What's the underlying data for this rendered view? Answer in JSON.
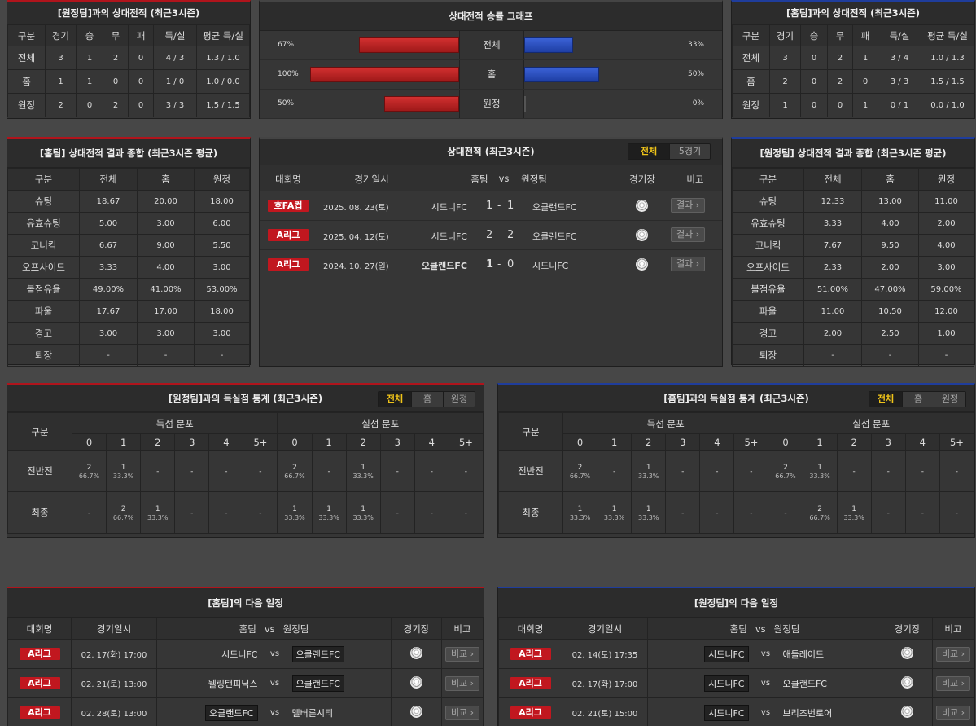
{
  "h2h_away_box": {
    "title": "[원정팀]과의 상대전적 (최근3시즌)",
    "headers": [
      "구분",
      "경기",
      "승",
      "무",
      "패",
      "득/실",
      "평균 득/실"
    ],
    "rows": [
      [
        "전체",
        "3",
        "1",
        "2",
        "0",
        "4 / 3",
        "1.3 / 1.0"
      ],
      [
        "홈",
        "1",
        "1",
        "0",
        "0",
        "1 / 0",
        "1.0 / 0.0"
      ],
      [
        "원정",
        "2",
        "0",
        "2",
        "0",
        "3 / 3",
        "1.5 / 1.5"
      ]
    ]
  },
  "win_graph": {
    "title": "상대전적 승률 그래프",
    "rows": [
      {
        "label": "전체",
        "left_pct": "67%",
        "right_pct": "33%",
        "left_value": 67,
        "right_value": 33
      },
      {
        "label": "홈",
        "left_pct": "100%",
        "right_pct": "50%",
        "left_value": 100,
        "right_value": 50
      },
      {
        "label": "원정",
        "left_pct": "50%",
        "right_pct": "0%",
        "left_value": 50,
        "right_value": 0
      }
    ],
    "colors": {
      "home": "#c1171f",
      "away": "#2a4fc2"
    }
  },
  "h2h_home_box": {
    "title": "[홈팀]과의 상대전적 (최근3시즌)",
    "headers": [
      "구분",
      "경기",
      "승",
      "무",
      "패",
      "득/실",
      "평균 득/실"
    ],
    "rows": [
      [
        "전체",
        "3",
        "0",
        "2",
        "1",
        "3 / 4",
        "1.0 / 1.3"
      ],
      [
        "홈",
        "2",
        "0",
        "2",
        "0",
        "3 / 3",
        "1.5 / 1.5"
      ],
      [
        "원정",
        "1",
        "0",
        "0",
        "1",
        "0 / 1",
        "0.0 / 1.0"
      ]
    ]
  },
  "home_summary": {
    "title": "[홈팀] 상대전적 결과 종합 (최근3시즌 평균)",
    "headers": [
      "구분",
      "전체",
      "홈",
      "원정"
    ],
    "rows": [
      [
        "슈팅",
        "18.67",
        "20.00",
        "18.00"
      ],
      [
        "유효슈팅",
        "5.00",
        "3.00",
        "6.00"
      ],
      [
        "코너킥",
        "6.67",
        "9.00",
        "5.50"
      ],
      [
        "오프사이드",
        "3.33",
        "4.00",
        "3.00"
      ],
      [
        "볼점유율",
        "49.00%",
        "41.00%",
        "53.00%"
      ],
      [
        "파울",
        "17.67",
        "17.00",
        "18.00"
      ],
      [
        "경고",
        "3.00",
        "3.00",
        "3.00"
      ],
      [
        "퇴장",
        "-",
        "-",
        "-"
      ]
    ]
  },
  "h2h_matches": {
    "title": "상대전적 (최근3시즌)",
    "tabs": [
      "전체",
      "5경기"
    ],
    "headers": [
      "대회명",
      "경기일시",
      "홈팀",
      "vs",
      "원정팀",
      "경기장",
      "비고"
    ],
    "rows": [
      {
        "league": "호FA컵",
        "date": "2025. 08. 23(토)",
        "home": "시드니FC",
        "hs": "1",
        "sep": "-",
        "as": "1",
        "away": "오클랜드FC",
        "btn": "결과 ›",
        "home_win": false
      },
      {
        "league": "A리그",
        "date": "2025. 04. 12(토)",
        "home": "시드니FC",
        "hs": "2",
        "sep": "-",
        "as": "2",
        "away": "오클랜드FC",
        "btn": "결과 ›",
        "home_win": false
      },
      {
        "league": "A리그",
        "date": "2024. 10. 27(일)",
        "home": "오클랜드FC",
        "hs": "1",
        "sep": "-",
        "as": "0",
        "away": "시드니FC",
        "btn": "결과 ›",
        "home_win": true
      }
    ]
  },
  "away_summary": {
    "title": "[원정팀] 상대전적 결과 종합 (최근3시즌 평균)",
    "headers": [
      "구분",
      "전체",
      "홈",
      "원정"
    ],
    "rows": [
      [
        "슈팅",
        "12.33",
        "13.00",
        "11.00"
      ],
      [
        "유효슈팅",
        "3.33",
        "4.00",
        "2.00"
      ],
      [
        "코너킥",
        "7.67",
        "9.50",
        "4.00"
      ],
      [
        "오프사이드",
        "2.33",
        "2.00",
        "3.00"
      ],
      [
        "볼점유율",
        "51.00%",
        "47.00%",
        "59.00%"
      ],
      [
        "파울",
        "11.00",
        "10.50",
        "12.00"
      ],
      [
        "경고",
        "2.00",
        "2.50",
        "1.00"
      ],
      [
        "퇴장",
        "-",
        "-",
        "-"
      ]
    ]
  },
  "goals_vs_away": {
    "title": "[원정팀]과의 득실점 통계 (최근3시즌)",
    "tabs": [
      "전체",
      "홈",
      "원정"
    ],
    "col_label": "구분",
    "scored_label": "득점 분포",
    "conceded_label": "실점 분포",
    "buckets": [
      "0",
      "1",
      "2",
      "3",
      "4",
      "5+"
    ],
    "rows": [
      {
        "label": "전반전",
        "cells": [
          [
            "2",
            "66.7%"
          ],
          [
            "1",
            "33.3%"
          ],
          [
            "-",
            ""
          ],
          [
            "-",
            ""
          ],
          [
            "-",
            ""
          ],
          [
            "-",
            ""
          ],
          [
            "2",
            "66.7%"
          ],
          [
            "-",
            ""
          ],
          [
            "1",
            "33.3%"
          ],
          [
            "-",
            ""
          ],
          [
            "-",
            ""
          ],
          [
            "-",
            ""
          ]
        ]
      },
      {
        "label": "최종",
        "cells": [
          [
            "-",
            ""
          ],
          [
            "2",
            "66.7%"
          ],
          [
            "1",
            "33.3%"
          ],
          [
            "-",
            ""
          ],
          [
            "-",
            ""
          ],
          [
            "-",
            ""
          ],
          [
            "1",
            "33.3%"
          ],
          [
            "1",
            "33.3%"
          ],
          [
            "1",
            "33.3%"
          ],
          [
            "-",
            ""
          ],
          [
            "-",
            ""
          ],
          [
            "-",
            ""
          ]
        ]
      }
    ]
  },
  "goals_vs_home": {
    "title": "[홈팀]과의 득실점 통계 (최근3시즌)",
    "tabs": [
      "전체",
      "홈",
      "원정"
    ],
    "col_label": "구분",
    "scored_label": "득점 분포",
    "conceded_label": "실점 분포",
    "buckets": [
      "0",
      "1",
      "2",
      "3",
      "4",
      "5+"
    ],
    "rows": [
      {
        "label": "전반전",
        "cells": [
          [
            "2",
            "66.7%"
          ],
          [
            "-",
            ""
          ],
          [
            "1",
            "33.3%"
          ],
          [
            "-",
            ""
          ],
          [
            "-",
            ""
          ],
          [
            "-",
            ""
          ],
          [
            "2",
            "66.7%"
          ],
          [
            "1",
            "33.3%"
          ],
          [
            "-",
            ""
          ],
          [
            "-",
            ""
          ],
          [
            "-",
            ""
          ],
          [
            "-",
            ""
          ]
        ]
      },
      {
        "label": "최종",
        "cells": [
          [
            "1",
            "33.3%"
          ],
          [
            "1",
            "33.3%"
          ],
          [
            "1",
            "33.3%"
          ],
          [
            "-",
            ""
          ],
          [
            "-",
            ""
          ],
          [
            "-",
            ""
          ],
          [
            "-",
            ""
          ],
          [
            "2",
            "66.7%"
          ],
          [
            "1",
            "33.3%"
          ],
          [
            "-",
            ""
          ],
          [
            "-",
            ""
          ],
          [
            "-",
            ""
          ]
        ]
      }
    ]
  },
  "home_next": {
    "title": "[홈팀]의 다음 일정",
    "headers": [
      "대회명",
      "경기일시",
      "홈팀",
      "vs",
      "원정팀",
      "경기장",
      "비고"
    ],
    "rows": [
      {
        "league": "A리그",
        "date": "02. 17(화) 17:00",
        "home": "시드니FC",
        "away": "오클랜드FC",
        "highlight": "away",
        "btn": "비교 ›"
      },
      {
        "league": "A리그",
        "date": "02. 21(토) 13:00",
        "home": "웰링턴피닉스",
        "away": "오클랜드FC",
        "highlight": "away",
        "btn": "비교 ›"
      },
      {
        "league": "A리그",
        "date": "02. 28(토) 13:00",
        "home": "오클랜드FC",
        "away": "멜버른시티",
        "highlight": "home",
        "btn": "비교 ›"
      }
    ]
  },
  "away_next": {
    "title": "[원정팀]의 다음 일정",
    "headers": [
      "대회명",
      "경기일시",
      "홈팀",
      "vs",
      "원정팀",
      "경기장",
      "비고"
    ],
    "rows": [
      {
        "league": "A리그",
        "date": "02. 14(토) 17:35",
        "home": "시드니FC",
        "away": "애들레이드",
        "highlight": "home",
        "btn": "비교 ›"
      },
      {
        "league": "A리그",
        "date": "02. 17(화) 17:00",
        "home": "시드니FC",
        "away": "오클랜드FC",
        "highlight": "home",
        "btn": "비교 ›"
      },
      {
        "league": "A리그",
        "date": "02. 21(토) 15:00",
        "home": "시드니FC",
        "away": "브리즈번로어",
        "highlight": "home",
        "btn": "비교 ›"
      }
    ]
  }
}
